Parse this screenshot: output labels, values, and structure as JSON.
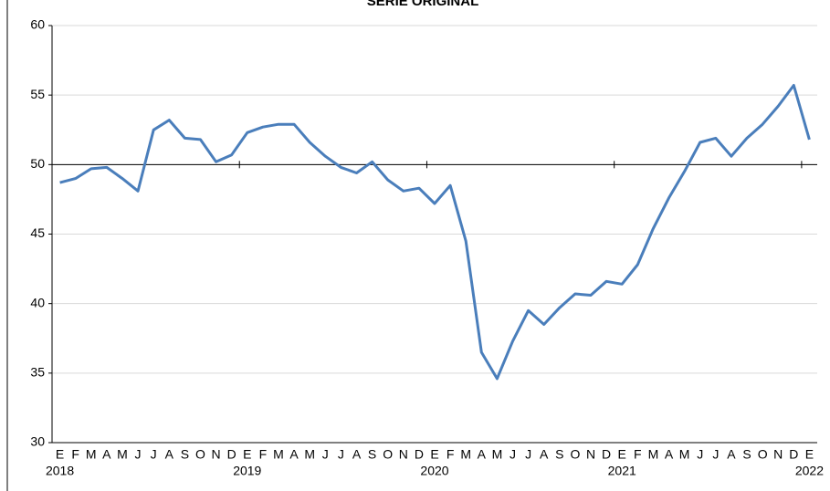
{
  "chart_data": {
    "type": "line",
    "title": "SERIE ORIGINAL",
    "categories": [
      "E",
      "F",
      "M",
      "A",
      "M",
      "J",
      "J",
      "A",
      "S",
      "O",
      "N",
      "D",
      "E",
      "F",
      "M",
      "A",
      "M",
      "J",
      "J",
      "A",
      "S",
      "O",
      "N",
      "D",
      "E",
      "F",
      "M",
      "A",
      "M",
      "J",
      "J",
      "A",
      "S",
      "O",
      "N",
      "D",
      "E",
      "F",
      "M",
      "A",
      "M",
      "J",
      "J",
      "A",
      "S",
      "O",
      "N",
      "D",
      "E"
    ],
    "years": [
      "2018",
      "2019",
      "2020",
      "2021",
      "2022"
    ],
    "series": [
      {
        "color": "#4a7ebb",
        "values": [
          48.7,
          49.0,
          49.7,
          49.8,
          49.0,
          48.1,
          52.5,
          53.2,
          51.9,
          51.8,
          50.2,
          50.7,
          52.3,
          52.7,
          52.9,
          52.9,
          51.6,
          50.6,
          49.8,
          49.4,
          50.2,
          48.9,
          48.1,
          48.3,
          47.2,
          48.5,
          44.5,
          36.5,
          34.6,
          37.3,
          39.5,
          38.5,
          39.7,
          40.7,
          40.6,
          41.6,
          41.4,
          42.8,
          45.4,
          47.6,
          49.5,
          51.6,
          51.9,
          50.6,
          51.9,
          52.9,
          54.2,
          55.7,
          51.8
        ]
      }
    ],
    "ylim": [
      30,
      60
    ],
    "yticks": [
      30,
      35,
      40,
      45,
      50,
      55,
      60
    ],
    "x_axis_crosses": 50,
    "grid": true
  }
}
